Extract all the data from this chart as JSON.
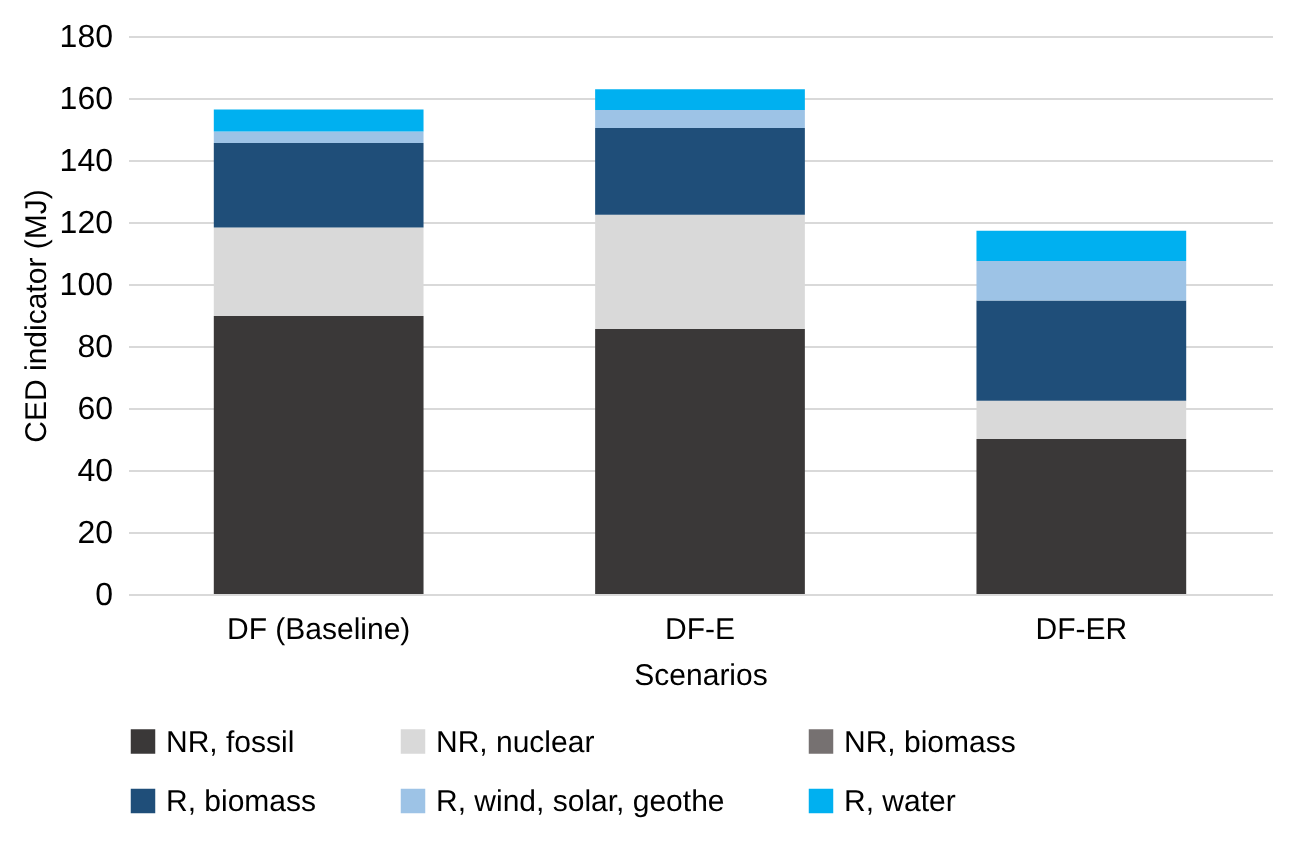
{
  "chart_data": {
    "type": "bar",
    "stacked": true,
    "xlabel": "Scenarios",
    "ylabel": "CED indicator (MJ)",
    "categories": [
      "DF (Baseline)",
      "DF-E",
      "DF-ER"
    ],
    "series": [
      {
        "name": "NR, fossil",
        "color": "#3a3838",
        "values": [
          89.7,
          85.5,
          50
        ]
      },
      {
        "name": "NR, nuclear",
        "color": "#d9d9d9",
        "values": [
          28.5,
          36.8,
          12.3
        ]
      },
      {
        "name": "NR, biomass",
        "color": "#767171",
        "values": [
          0,
          0,
          0
        ]
      },
      {
        "name": "R, biomass",
        "color": "#1f4e79",
        "values": [
          27.3,
          28,
          32.4
        ]
      },
      {
        "name": "R, wind, solar, geothe",
        "color": "#9dc3e6",
        "values": [
          3.7,
          5.8,
          12.7
        ]
      },
      {
        "name": "R, water",
        "color": "#00b0f0",
        "values": [
          7.1,
          6.7,
          9.8
        ]
      }
    ],
    "ylim": [
      0,
      180
    ],
    "yticks": [
      0,
      20,
      40,
      60,
      80,
      100,
      120,
      140,
      160,
      180
    ],
    "grid": "y",
    "legend": "bottom"
  }
}
